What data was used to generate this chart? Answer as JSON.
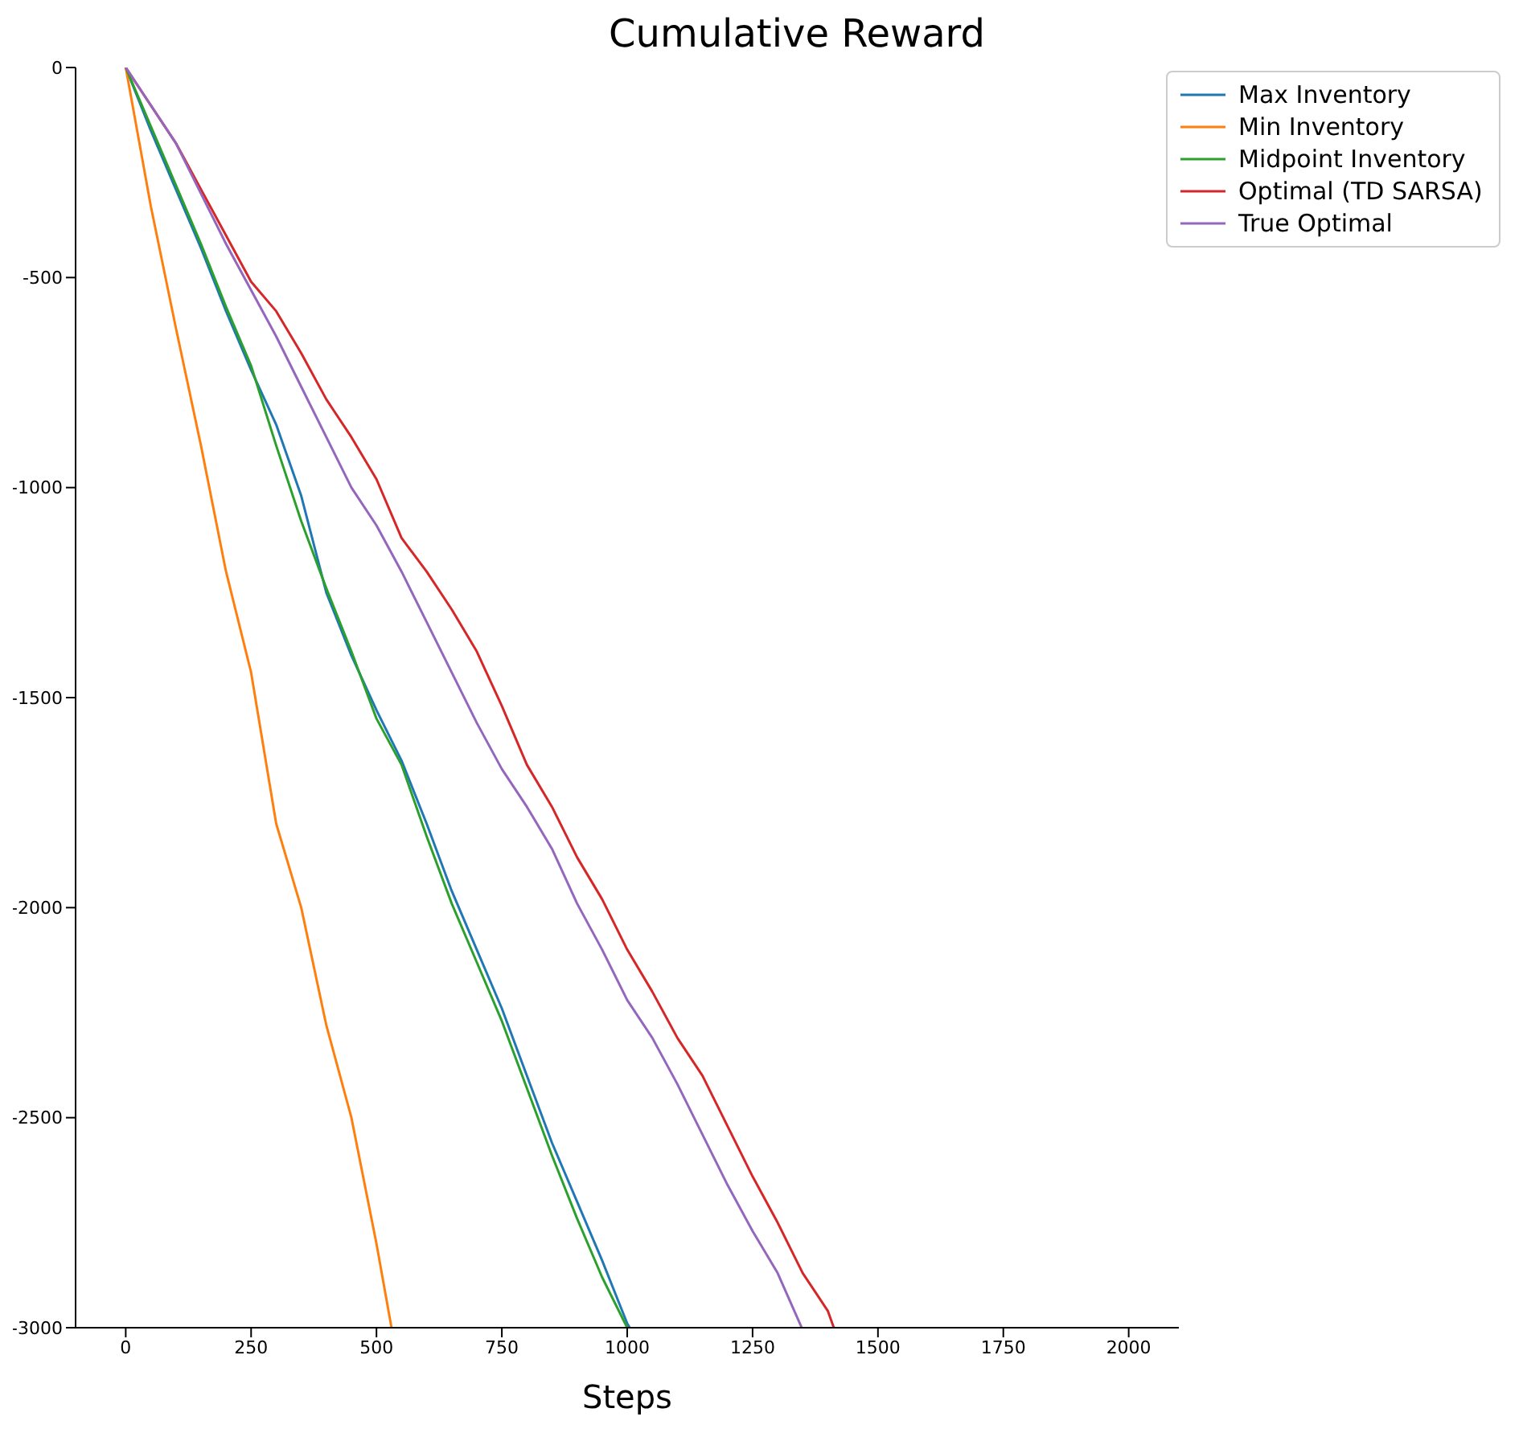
{
  "chart_data": {
    "type": "line",
    "title": "Cumulative Reward",
    "xlabel": "Steps",
    "xlim": [
      -100,
      2100
    ],
    "xticks": [
      0,
      250,
      500,
      750,
      1000,
      1250,
      1500,
      1750,
      2000
    ],
    "ylim": [
      -3000,
      0
    ],
    "yticks": [
      -3000,
      -2500,
      -2000,
      -1500,
      -1000,
      -500,
      0
    ],
    "grid": false,
    "legend": "top right",
    "series": [
      {
        "name": "Max Inventory",
        "color": "#1f77b4",
        "x": [
          0,
          50,
          100,
          150,
          200,
          250,
          300,
          350,
          400,
          450,
          500,
          550,
          600,
          650,
          700,
          750,
          800,
          850,
          900,
          950,
          1000,
          1005
        ],
        "values": [
          0,
          -150,
          -290,
          -430,
          -580,
          -720,
          -850,
          -1020,
          -1250,
          -1400,
          -1530,
          -1650,
          -1800,
          -1960,
          -2100,
          -2240,
          -2400,
          -2560,
          -2700,
          -2840,
          -2990,
          -3000
        ]
      },
      {
        "name": "Min Inventory",
        "color": "#ff7f0e",
        "x": [
          0,
          50,
          100,
          150,
          200,
          250,
          300,
          350,
          400,
          450,
          500,
          530
        ],
        "values": [
          0,
          -330,
          -620,
          -900,
          -1200,
          -1440,
          -1800,
          -2000,
          -2280,
          -2500,
          -2800,
          -3000
        ]
      },
      {
        "name": "Midpoint Inventory",
        "color": "#2ca02c",
        "x": [
          0,
          50,
          100,
          150,
          200,
          250,
          300,
          350,
          400,
          450,
          500,
          550,
          600,
          650,
          700,
          750,
          800,
          850,
          900,
          950,
          1000
        ],
        "values": [
          0,
          -140,
          -280,
          -420,
          -570,
          -710,
          -900,
          -1080,
          -1240,
          -1390,
          -1550,
          -1660,
          -1830,
          -1990,
          -2130,
          -2270,
          -2430,
          -2590,
          -2740,
          -2880,
          -3000
        ]
      },
      {
        "name": "Optimal (TD SARSA)",
        "color": "#d62728",
        "x": [
          0,
          100,
          200,
          250,
          300,
          350,
          400,
          450,
          500,
          550,
          600,
          650,
          700,
          750,
          800,
          850,
          900,
          950,
          1000,
          1050,
          1100,
          1150,
          1200,
          1250,
          1300,
          1350,
          1400,
          1412
        ],
        "values": [
          0,
          -180,
          -400,
          -510,
          -580,
          -680,
          -790,
          -880,
          -980,
          -1120,
          -1200,
          -1290,
          -1390,
          -1520,
          -1660,
          -1760,
          -1880,
          -1980,
          -2100,
          -2200,
          -2310,
          -2400,
          -2520,
          -2640,
          -2750,
          -2870,
          -2960,
          -3000
        ]
      },
      {
        "name": "True Optimal",
        "color": "#9467bd",
        "x": [
          0,
          100,
          200,
          250,
          300,
          350,
          400,
          450,
          500,
          550,
          600,
          650,
          700,
          750,
          800,
          850,
          900,
          950,
          1000,
          1050,
          1100,
          1150,
          1200,
          1250,
          1300,
          1348
        ],
        "values": [
          0,
          -180,
          -420,
          -530,
          -640,
          -760,
          -880,
          -1000,
          -1090,
          -1200,
          -1320,
          -1440,
          -1560,
          -1670,
          -1760,
          -1860,
          -1990,
          -2100,
          -2220,
          -2310,
          -2420,
          -2540,
          -2660,
          -2770,
          -2870,
          -3000
        ]
      }
    ]
  }
}
